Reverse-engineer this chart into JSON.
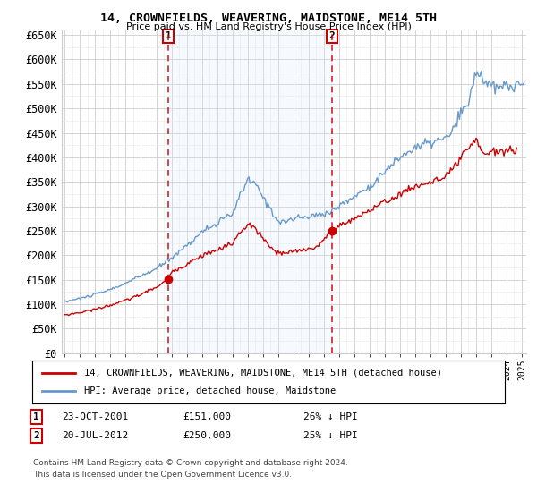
{
  "title": "14, CROWNFIELDS, WEAVERING, MAIDSTONE, ME14 5TH",
  "subtitle": "Price paid vs. HM Land Registry's House Price Index (HPI)",
  "legend_line1": "14, CROWNFIELDS, WEAVERING, MAIDSTONE, ME14 5TH (detached house)",
  "legend_line2": "HPI: Average price, detached house, Maidstone",
  "marker1_date": "23-OCT-2001",
  "marker1_price": "£151,000",
  "marker1_hpi": "26% ↓ HPI",
  "marker1_year": 2001.81,
  "marker1_value": 151000,
  "marker2_date": "20-JUL-2012",
  "marker2_price": "£250,000",
  "marker2_hpi": "25% ↓ HPI",
  "marker2_year": 2012.54,
  "marker2_value": 250000,
  "footer_line1": "Contains HM Land Registry data © Crown copyright and database right 2024.",
  "footer_line2": "This data is licensed under the Open Government Licence v3.0.",
  "hpi_color": "#6699cc",
  "price_color": "#cc0000",
  "marker_color": "#cc0000",
  "shade_color": "#ddeeff",
  "grid_color": "#cccccc",
  "minor_grid_color": "#e8e8e8",
  "background_color": "#ffffff",
  "plot_background": "#ffffff",
  "ylim": [
    0,
    660000
  ],
  "yticks": [
    0,
    50000,
    100000,
    150000,
    200000,
    250000,
    300000,
    350000,
    400000,
    450000,
    500000,
    550000,
    600000,
    650000
  ],
  "xlim_start": 1994.8,
  "xlim_end": 2025.3
}
